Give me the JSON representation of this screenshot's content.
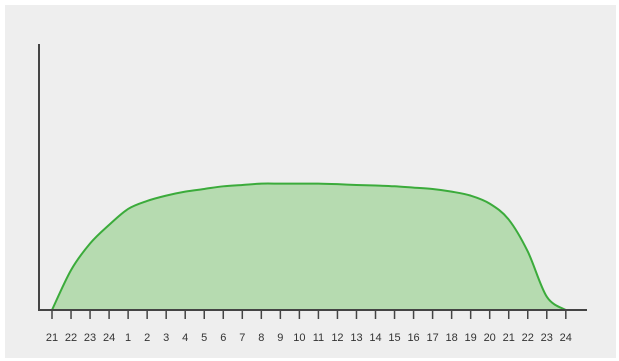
{
  "chart_data": {
    "type": "area",
    "title": "",
    "xlabel": "",
    "ylabel": "",
    "grid": false,
    "legend": "none",
    "categories": [
      "21",
      "22",
      "23",
      "24",
      "1",
      "2",
      "3",
      "4",
      "5",
      "6",
      "7",
      "8",
      "9",
      "10",
      "11",
      "12",
      "13",
      "14",
      "15",
      "16",
      "17",
      "18",
      "19",
      "20",
      "21",
      "22",
      "23",
      "24"
    ],
    "ylim": [
      0,
      100
    ],
    "series": [
      {
        "values": [
          0,
          15,
          25,
          32,
          38,
          41,
          43,
          44.5,
          45.5,
          46.5,
          47,
          47.5,
          47.5,
          47.5,
          47.5,
          47.3,
          47,
          46.8,
          46.5,
          46,
          45.5,
          44.5,
          43,
          40,
          34,
          22,
          5,
          0
        ]
      }
    ],
    "colors": {
      "line": "#3bab3b",
      "fill": "#b6dbb0",
      "axis": "#444444",
      "background": "#eeeeee"
    }
  }
}
